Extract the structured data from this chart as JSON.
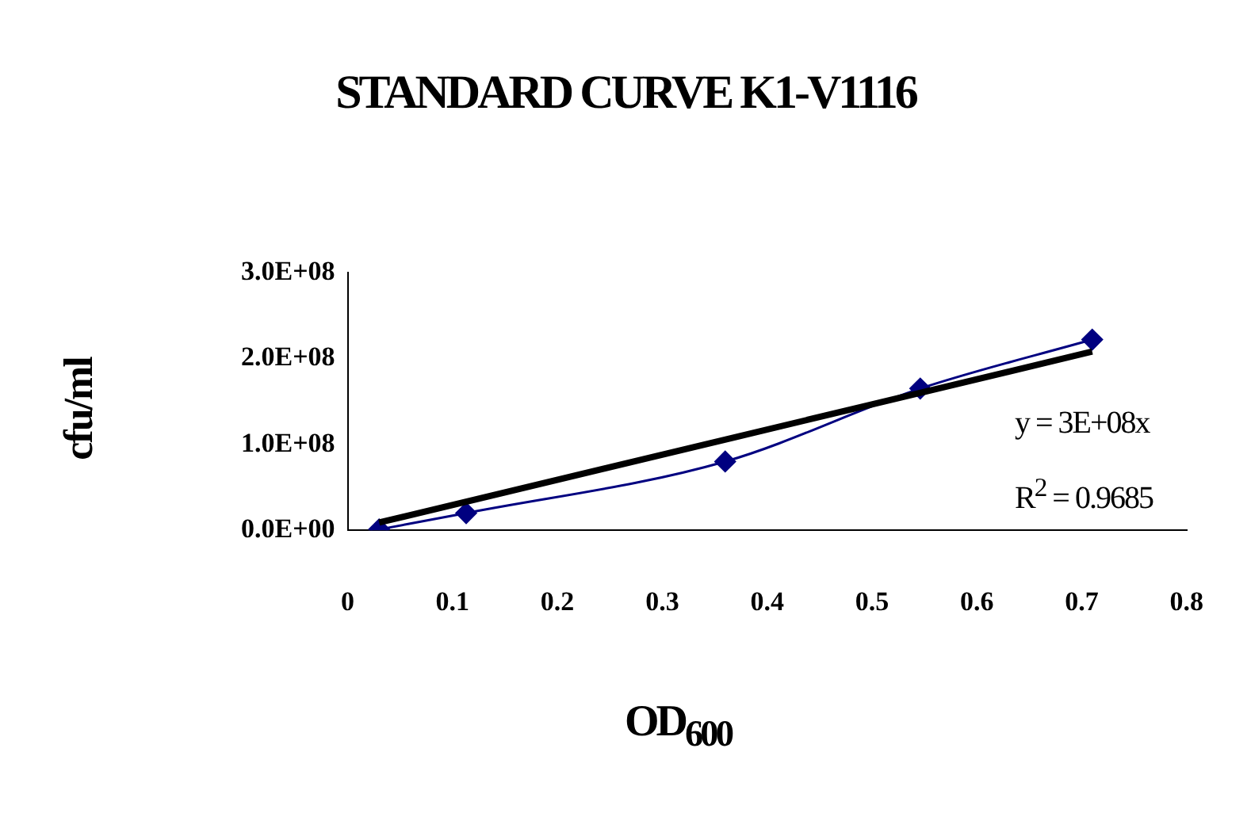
{
  "chart_data": {
    "type": "scatter",
    "title": "STANDARD CURVE K1-V1116",
    "xlabel": "OD$_{600}$",
    "ylabel": "cfu/ml",
    "annotations": [
      "y = 3E+08x",
      "R$^{2}$ = 0.9685"
    ],
    "series": [
      {
        "type": "line",
        "color": "#000080",
        "marker": "diamond",
        "x": [
          0.03,
          0.113,
          0.36,
          0.546,
          0.71
        ],
        "values": [
          1000000,
          20000000,
          80000000,
          165000000,
          222000000
        ]
      },
      {
        "type": "line",
        "color": "#000000",
        "marker": "none",
        "x": [
          0.03,
          0.71
        ],
        "values": [
          9000000,
          208000000
        ]
      }
    ],
    "xlim": [
      0,
      0.8
    ],
    "xticks": [
      0,
      0.1,
      0.2,
      0.3,
      0.4,
      0.5,
      0.6,
      0.7,
      0.8
    ],
    "ylim": [
      0,
      300000000
    ],
    "yticks": [
      {
        "value": 0,
        "label": "0.0E+00"
      },
      {
        "value": 100000000,
        "label": "1.0E+08"
      },
      {
        "value": 200000000,
        "label": "2.0E+08"
      },
      {
        "value": 300000000,
        "label": "3.0E+08"
      }
    ],
    "grid": false,
    "legend": false
  }
}
